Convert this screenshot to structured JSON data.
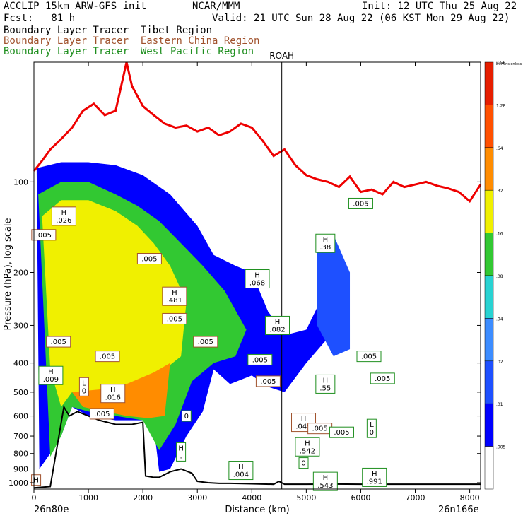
{
  "header": {
    "model": "ACCLIP 15km ARW-GFS init",
    "org": "NCAR/MMM",
    "init": "Init: 12 UTC Thu 25 Aug 22",
    "fcst": "Fcst:   81 h",
    "valid": "Valid: 21 UTC Sun 28 Aug 22 (06 KST Mon 29 Aug 22)"
  },
  "tracers": [
    {
      "label": "Boundary Layer Tracer  Tibet Region",
      "color": "#000000"
    },
    {
      "label": "Boundary Layer Tracer  Eastern China Region",
      "color": "#a0522d"
    },
    {
      "label": "Boundary Layer Tracer  West Pacific Region",
      "color": "#1f8f1f"
    }
  ],
  "chart_data": {
    "type": "contour-cross-section",
    "xlabel": "Distance (km)",
    "ylabel": "Pressure (hPa), log scale",
    "xlim": [
      0,
      8200
    ],
    "ylim_hpa": [
      1050,
      40
    ],
    "y_scale": "log",
    "x_ticks": [
      0,
      1000,
      2000,
      3000,
      4000,
      5000,
      6000,
      7000,
      8000
    ],
    "y_ticks": [
      100,
      200,
      300,
      400,
      500,
      600,
      700,
      800,
      900,
      1000
    ],
    "left_endpoint": "26n80e",
    "right_endpoint": "26n166e",
    "vertical_marker": {
      "label": "ROAH",
      "x": 4550
    },
    "colorbar": {
      "levels": [
        0.005,
        0.01,
        0.02,
        0.04,
        0.08,
        0.16,
        0.32,
        0.64,
        1.28,
        2.56
      ],
      "labels": [
        ".005",
        ".01",
        ".02",
        ".04",
        ".08",
        ".16",
        ".32",
        ".64",
        "1.28",
        "2.56",
        "Dimensionless"
      ],
      "colors": [
        "#ffffff",
        "#0000ff",
        "#1e50ff",
        "#3c8cff",
        "#28d2d2",
        "#32c832",
        "#f0f000",
        "#ff8c00",
        "#ff5000",
        "#e61e00"
      ]
    },
    "tropopause": {
      "color": "#ee0000",
      "x": [
        0,
        150,
        300,
        500,
        700,
        900,
        1100,
        1300,
        1500,
        1700,
        1800,
        2000,
        2200,
        2400,
        2600,
        2800,
        3000,
        3200,
        3400,
        3600,
        3800,
        4000,
        4200,
        4400,
        4600,
        4800,
        5000,
        5200,
        5400,
        5600,
        5800,
        6000,
        6200,
        6400,
        6600,
        6800,
        7000,
        7200,
        7400,
        7600,
        7800,
        8000,
        8200
      ],
      "p": [
        92,
        85,
        78,
        72,
        66,
        58,
        55,
        60,
        58,
        40,
        48,
        56,
        60,
        64,
        66,
        65,
        68,
        66,
        70,
        68,
        64,
        66,
        73,
        82,
        78,
        88,
        95,
        98,
        100,
        104,
        96,
        108,
        106,
        110,
        100,
        104,
        102,
        100,
        103,
        105,
        108,
        116,
        102
      ]
    },
    "terrain": {
      "x": [
        0,
        300,
        550,
        650,
        800,
        1000,
        1200,
        1500,
        1800,
        2000,
        2050,
        2200,
        2300,
        2500,
        2700,
        2900,
        3000,
        3200,
        3400,
        3600,
        4000,
        4200,
        4400,
        4500,
        4600,
        5000,
        5500,
        6000,
        7000,
        8200
      ],
      "p": [
        1040,
        1030,
        560,
        600,
        580,
        600,
        620,
        640,
        640,
        630,
        950,
        960,
        960,
        920,
        900,
        930,
        990,
        1000,
        1005,
        1005,
        1008,
        1010,
        1012,
        990,
        1012,
        1012,
        1010,
        1012,
        1012,
        1012
      ]
    },
    "plume_polygons": [
      {
        "level": 0.01,
        "x": [
          50,
          500,
          1000,
          1500,
          2000,
          2500,
          3000,
          3300,
          3700,
          4000,
          4300,
          4500,
          4700,
          5000,
          5300,
          5800,
          5700,
          5400,
          5000,
          4600,
          4300,
          4000,
          3600,
          3300,
          3100,
          2800,
          2500,
          2300,
          2200,
          2000,
          1500,
          1000,
          700,
          500,
          300,
          100,
          50
        ],
        "p": [
          90,
          86,
          86,
          88,
          95,
          110,
          140,
          175,
          190,
          200,
          270,
          300,
          320,
          310,
          240,
          200,
          280,
          330,
          400,
          500,
          480,
          440,
          470,
          420,
          580,
          700,
          900,
          920,
          650,
          620,
          620,
          600,
          560,
          700,
          800,
          900,
          90
        ]
      },
      {
        "level": 0.16,
        "x": [
          80,
          500,
          1000,
          1500,
          1900,
          2300,
          2700,
          3100,
          3500,
          3900,
          3700,
          3300,
          2900,
          2600,
          2300,
          2000,
          1500,
          1000,
          700,
          500,
          300,
          80
        ],
        "p": [
          110,
          100,
          100,
          110,
          120,
          135,
          160,
          190,
          230,
          310,
          380,
          400,
          460,
          640,
          780,
          620,
          600,
          580,
          560,
          700,
          820,
          110
        ]
      },
      {
        "level": 0.32,
        "x": [
          150,
          500,
          1000,
          1500,
          1900,
          2200,
          2500,
          2800,
          2700,
          2400,
          2000,
          1500,
          1000,
          700,
          500,
          300,
          150
        ],
        "p": [
          130,
          115,
          115,
          125,
          140,
          160,
          190,
          250,
          380,
          420,
          500,
          520,
          520,
          500,
          560,
          420,
          130
        ]
      },
      {
        "level": 0.64,
        "x": [
          700,
          1200,
          1700,
          2200,
          2500,
          2400,
          2100,
          1700,
          1300,
          900,
          700
        ],
        "p": [
          500,
          490,
          470,
          430,
          400,
          600,
          610,
          600,
          580,
          560,
          500
        ]
      }
    ],
    "west_pacific_plume": {
      "x": [
        5200,
        5500,
        5800,
        5800,
        5500,
        5200
      ],
      "p": [
        160,
        150,
        200,
        360,
        380,
        300
      ]
    },
    "boxed_labels": [
      {
        "text": "H\n.026",
        "x": 550,
        "p": 130,
        "color": "#a0522d"
      },
      {
        "text": ".005",
        "x": 180,
        "p": 150,
        "color": "#a0522d"
      },
      {
        "text": ".005",
        "x": 2120,
        "p": 180,
        "color": "#a0522d"
      },
      {
        "text": "H\n.481",
        "x": 2580,
        "p": 240,
        "color": "#a0522d"
      },
      {
        "text": ".005",
        "x": 2580,
        "p": 285,
        "color": "#a0522d"
      },
      {
        "text": ".005",
        "x": 450,
        "p": 340,
        "color": "#a0522d"
      },
      {
        "text": ".005",
        "x": 1350,
        "p": 380,
        "color": "#a0522d"
      },
      {
        "text": "H\n.009",
        "x": 310,
        "p": 440,
        "color": "#1f8f1f"
      },
      {
        "text": "L\n0",
        "x": 920,
        "p": 480,
        "color": "#a0522d"
      },
      {
        "text": "H\n.016",
        "x": 1450,
        "p": 505,
        "color": "#a0522d"
      },
      {
        "text": ".005",
        "x": 1250,
        "p": 590,
        "color": "#a0522d"
      },
      {
        "text": "H\n.068",
        "x": 4100,
        "p": 210,
        "color": "#1f8f1f"
      },
      {
        "text": ".005",
        "x": 3150,
        "p": 340,
        "color": "#a0522d"
      },
      {
        "text": ".005",
        "x": 4150,
        "p": 390,
        "color": "#1f8f1f"
      },
      {
        "text": ".005",
        "x": 4300,
        "p": 460,
        "color": "#a0522d"
      },
      {
        "text": "H\n.049",
        "x": 4950,
        "p": 630,
        "color": "#a0522d"
      },
      {
        "text": ".005",
        "x": 5250,
        "p": 660,
        "color": "#a0522d"
      },
      {
        "text": "H\n.542",
        "x": 5020,
        "p": 760,
        "color": "#1f8f1f"
      },
      {
        "text": "H\n.082",
        "x": 4470,
        "p": 300,
        "color": "#1f8f1f"
      },
      {
        "text": "H\n.55",
        "x": 5350,
        "p": 470,
        "color": "#1f8f1f"
      },
      {
        "text": "H\n.38",
        "x": 5350,
        "p": 160,
        "color": "#1f8f1f"
      },
      {
        "text": ".005",
        "x": 6000,
        "p": 118,
        "color": "#1f8f1f"
      },
      {
        "text": ".005",
        "x": 6150,
        "p": 380,
        "color": "#1f8f1f"
      },
      {
        "text": ".005",
        "x": 6400,
        "p": 450,
        "color": "#1f8f1f"
      },
      {
        "text": ".005",
        "x": 5650,
        "p": 680,
        "color": "#1f8f1f"
      },
      {
        "text": "L\n0",
        "x": 6200,
        "p": 660,
        "color": "#1f8f1f"
      },
      {
        "text": "H\n.991",
        "x": 6250,
        "p": 960,
        "color": "#1f8f1f"
      },
      {
        "text": "H\n.543",
        "x": 5350,
        "p": 990,
        "color": "#1f8f1f"
      },
      {
        "text": "H\n.004",
        "x": 3800,
        "p": 910,
        "color": "#1f8f1f"
      },
      {
        "text": "H\n.",
        "x": 2700,
        "p": 790,
        "color": "#1f8f1f"
      },
      {
        "text": "0",
        "x": 2800,
        "p": 600,
        "color": "#1f8f1f"
      },
      {
        "text": "0",
        "x": 4950,
        "p": 860,
        "color": "#1f8f1f"
      },
      {
        "text": "H",
        "x": 40,
        "p": 980,
        "color": "#a0522d"
      }
    ]
  }
}
